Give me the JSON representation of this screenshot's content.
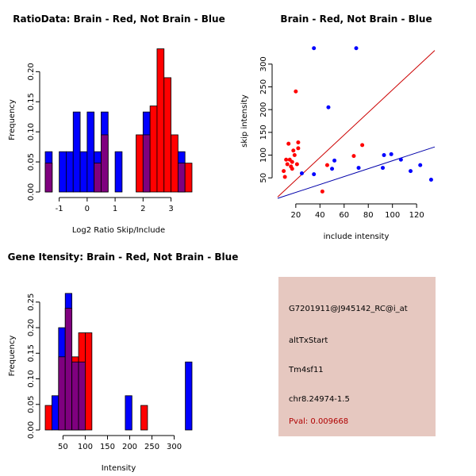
{
  "colors": {
    "brain": "#ff0000",
    "not_brain": "#0000ff",
    "overlap": "#7f007f",
    "info_bg": "#e6c8c0",
    "pval": "#b00000"
  },
  "chart_data": [
    {
      "id": "ratio",
      "type": "bar",
      "title": "RatioData: Brain - Red, Not Brain - Blue",
      "xlabel": "Log2 Ratio Skip/Include",
      "ylabel": "Frequency",
      "xlim": [
        -1.5,
        3.75
      ],
      "ylim": [
        0,
        0.24
      ],
      "xticks": [
        -1,
        0,
        1,
        2,
        3
      ],
      "yticks": [
        0.0,
        0.05,
        0.1,
        0.15,
        0.2
      ],
      "bin_width": 0.25,
      "series": [
        {
          "name": "Not Brain",
          "color": "#0000ff",
          "bins": [
            [
              -1.5,
              0.067
            ],
            [
              -1.0,
              0.067
            ],
            [
              -0.75,
              0.067
            ],
            [
              -0.5,
              0.133
            ],
            [
              -0.25,
              0.067
            ],
            [
              0.0,
              0.133
            ],
            [
              0.25,
              0.067
            ],
            [
              0.5,
              0.133
            ],
            [
              1.0,
              0.067
            ],
            [
              2.0,
              0.133
            ],
            [
              3.25,
              0.067
            ]
          ]
        },
        {
          "name": "Brain",
          "color": "#ff0000",
          "bins": [
            [
              -1.5,
              0.048
            ],
            [
              0.25,
              0.048
            ],
            [
              0.5,
              0.095
            ],
            [
              1.75,
              0.095
            ],
            [
              2.0,
              0.095
            ],
            [
              2.25,
              0.143
            ],
            [
              2.5,
              0.238
            ],
            [
              2.75,
              0.19
            ],
            [
              3.0,
              0.095
            ],
            [
              3.25,
              0.048
            ],
            [
              3.5,
              0.048
            ]
          ]
        }
      ]
    },
    {
      "id": "scatter",
      "type": "scatter",
      "title": "Brain - Red, Not Brain - Blue",
      "xlabel": "include intensity",
      "ylabel": "skip intensity",
      "xlim": [
        5,
        135
      ],
      "ylim": [
        5,
        345
      ],
      "xticks": [
        20,
        40,
        60,
        80,
        100,
        120
      ],
      "yticks": [
        50,
        100,
        150,
        200,
        250,
        300
      ],
      "series": [
        {
          "name": "Brain",
          "color": "#ff0000",
          "points": [
            [
              10,
              65
            ],
            [
              11,
              52
            ],
            [
              12,
              90
            ],
            [
              13,
              80
            ],
            [
              14,
              125
            ],
            [
              15,
              90
            ],
            [
              16,
              75
            ],
            [
              17,
              70
            ],
            [
              17,
              85
            ],
            [
              18,
              110
            ],
            [
              19,
              100
            ],
            [
              20,
              240
            ],
            [
              21,
              80
            ],
            [
              22,
              115
            ],
            [
              22,
              128
            ],
            [
              46,
              78
            ],
            [
              42,
              20
            ],
            [
              68,
              98
            ],
            [
              75,
              122
            ]
          ]
        },
        {
          "name": "Not Brain",
          "color": "#0000ff",
          "points": [
            [
              25,
              60
            ],
            [
              35,
              335
            ],
            [
              35,
              58
            ],
            [
              47,
              205
            ],
            [
              50,
              70
            ],
            [
              52,
              88
            ],
            [
              70,
              335
            ],
            [
              72,
              72
            ],
            [
              92,
              72
            ],
            [
              93,
              100
            ],
            [
              99,
              102
            ],
            [
              107,
              90
            ],
            [
              115,
              65
            ],
            [
              123,
              78
            ],
            [
              132,
              46
            ]
          ]
        }
      ],
      "lines": [
        {
          "name": "diagonal",
          "color": "#cc0000",
          "points": [
            [
              5,
              8
            ],
            [
              135,
              330
            ]
          ]
        },
        {
          "name": "fit",
          "color": "#0000aa",
          "points": [
            [
              5,
              5
            ],
            [
              135,
              118
            ]
          ]
        }
      ]
    },
    {
      "id": "intensity",
      "type": "bar",
      "title": "Gene Itensity: Brain - Red, Not Brain - Blue",
      "xlabel": "Intensity",
      "ylabel": "Frequency",
      "xlim": [
        10,
        340
      ],
      "ylim": [
        0,
        0.29
      ],
      "xticks": [
        50,
        100,
        150,
        200,
        250,
        300
      ],
      "yticks": [
        0.0,
        0.05,
        0.1,
        0.15,
        0.2,
        0.25
      ],
      "bin_width": 15,
      "series": [
        {
          "name": "Not Brain",
          "color": "#0000ff",
          "bins": [
            [
              25,
              0.067
            ],
            [
              40,
              0.2
            ],
            [
              55,
              0.267
            ],
            [
              70,
              0.133
            ],
            [
              85,
              0.133
            ],
            [
              190,
              0.067
            ],
            [
              325,
              0.133
            ]
          ]
        },
        {
          "name": "Brain",
          "color": "#ff0000",
          "bins": [
            [
              10,
              0.048
            ],
            [
              40,
              0.143
            ],
            [
              55,
              0.238
            ],
            [
              70,
              0.143
            ],
            [
              85,
              0.19
            ],
            [
              100,
              0.19
            ],
            [
              225,
              0.048
            ]
          ]
        }
      ]
    }
  ],
  "info": {
    "probe": "G7201911@J945142_RC@i_at",
    "event": "altTxStart",
    "gene": "Tm4sf11",
    "location": "chr8.24974-1.5",
    "pval": "Pval: 0.009668"
  }
}
